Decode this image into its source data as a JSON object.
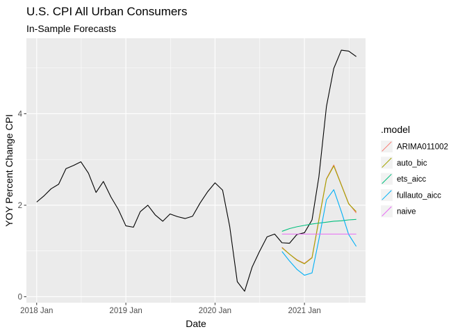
{
  "chart_data": {
    "type": "line",
    "title": "U.S. CPI All Urban Consumers",
    "subtitle": "In-Sample Forecasts",
    "xlabel": "Date",
    "ylabel": "YOY Percent Change CPI",
    "xlim": [
      "2017-11-20",
      "2021-09-08"
    ],
    "ylim": [
      -0.13,
      5.65
    ],
    "x_ticks": [
      {
        "date": "2018-01-01",
        "label": "2018 Jan"
      },
      {
        "date": "2019-01-01",
        "label": "2019 Jan"
      },
      {
        "date": "2020-01-01",
        "label": "2020 Jan"
      },
      {
        "date": "2021-01-01",
        "label": "2021 Jan"
      }
    ],
    "y_ticks": [
      0,
      2,
      4
    ],
    "grid": true,
    "legend": {
      "title": ".model",
      "placement": "right"
    },
    "actual": {
      "color": "#000000",
      "x": [
        "2018-01",
        "2018-02",
        "2018-03",
        "2018-04",
        "2018-05",
        "2018-06",
        "2018-07",
        "2018-08",
        "2018-09",
        "2018-10",
        "2018-11",
        "2018-12",
        "2019-01",
        "2019-02",
        "2019-03",
        "2019-04",
        "2019-05",
        "2019-06",
        "2019-07",
        "2019-08",
        "2019-09",
        "2019-10",
        "2019-11",
        "2019-12",
        "2020-01",
        "2020-02",
        "2020-03",
        "2020-04",
        "2020-05",
        "2020-06",
        "2020-07",
        "2020-08",
        "2020-09",
        "2020-10",
        "2020-11",
        "2020-12",
        "2021-01",
        "2021-02",
        "2021-03",
        "2021-04",
        "2021-05",
        "2021-06",
        "2021-07",
        "2021-08"
      ],
      "values": [
        2.07,
        2.21,
        2.36,
        2.46,
        2.8,
        2.87,
        2.95,
        2.7,
        2.28,
        2.52,
        2.18,
        1.91,
        1.55,
        1.52,
        1.86,
        2.0,
        1.79,
        1.65,
        1.81,
        1.75,
        1.71,
        1.76,
        2.05,
        2.29,
        2.49,
        2.33,
        1.54,
        0.33,
        0.12,
        0.65,
        0.99,
        1.31,
        1.37,
        1.18,
        1.17,
        1.36,
        1.4,
        1.68,
        2.62,
        4.16,
        4.99,
        5.39,
        5.37,
        5.25
      ]
    },
    "series": [
      {
        "name": "ARIMA011002",
        "color": "#F8766D",
        "x": [
          "2020-10",
          "2020-11",
          "2020-12",
          "2021-01",
          "2021-02",
          "2021-03",
          "2021-04",
          "2021-05",
          "2021-06",
          "2021-07",
          "2021-08"
        ],
        "values": [
          1.08,
          0.93,
          0.81,
          0.73,
          0.86,
          1.69,
          2.58,
          2.88,
          2.45,
          2.04,
          1.83
        ]
      },
      {
        "name": "auto_bic",
        "color": "#A3A500",
        "x": [
          "2020-10",
          "2020-11",
          "2020-12",
          "2021-01",
          "2021-02",
          "2021-03",
          "2021-04",
          "2021-05",
          "2021-06",
          "2021-07",
          "2021-08"
        ],
        "values": [
          1.07,
          0.93,
          0.8,
          0.72,
          0.85,
          1.67,
          2.57,
          2.86,
          2.44,
          2.03,
          1.86
        ]
      },
      {
        "name": "ets_aicc",
        "color": "#00BF7D",
        "x": [
          "2020-10",
          "2020-11",
          "2020-12",
          "2021-01",
          "2021-02",
          "2021-03",
          "2021-04",
          "2021-05",
          "2021-06",
          "2021-07",
          "2021-08"
        ],
        "values": [
          1.43,
          1.49,
          1.53,
          1.56,
          1.59,
          1.61,
          1.63,
          1.65,
          1.66,
          1.68,
          1.69
        ]
      },
      {
        "name": "fullauto_aicc",
        "color": "#00B0F6",
        "x": [
          "2020-10",
          "2020-11",
          "2020-12",
          "2021-01",
          "2021-02",
          "2021-03",
          "2021-04",
          "2021-05",
          "2021-06",
          "2021-07",
          "2021-08"
        ],
        "values": [
          0.99,
          0.78,
          0.6,
          0.47,
          0.52,
          1.25,
          2.12,
          2.34,
          1.86,
          1.36,
          1.1
        ]
      },
      {
        "name": "naive",
        "color": "#E76BF3",
        "x": [
          "2020-10",
          "2020-11",
          "2020-12",
          "2021-01",
          "2021-02",
          "2021-03",
          "2021-04",
          "2021-05",
          "2021-06",
          "2021-07",
          "2021-08"
        ],
        "values": [
          1.37,
          1.37,
          1.37,
          1.37,
          1.37,
          1.37,
          1.37,
          1.37,
          1.37,
          1.37,
          1.37
        ]
      }
    ]
  }
}
